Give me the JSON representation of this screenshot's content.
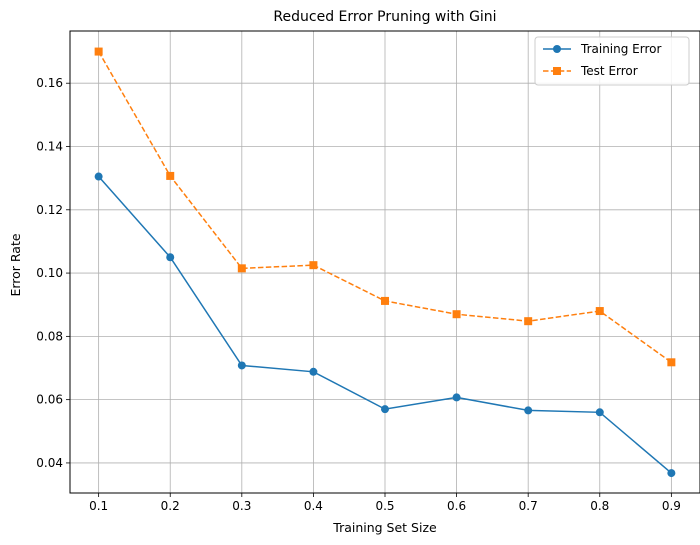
{
  "chart_data": {
    "type": "line",
    "title": "Reduced Error Pruning with Gini",
    "xlabel": "Training Set Size",
    "ylabel": "Error Rate",
    "x": [
      0.1,
      0.2,
      0.3,
      0.4,
      0.5,
      0.6,
      0.7,
      0.8,
      0.9
    ],
    "x_tick_labels": [
      "0.1",
      "0.2",
      "0.3",
      "0.4",
      "0.5",
      "0.6",
      "0.7",
      "0.8",
      "0.9"
    ],
    "y_ticks": [
      0.04,
      0.06,
      0.08,
      0.1,
      0.12,
      0.14,
      0.16
    ],
    "y_tick_labels": [
      "0.04",
      "0.06",
      "0.08",
      "0.10",
      "0.12",
      "0.14",
      "0.16"
    ],
    "xlim": [
      0.06,
      0.94
    ],
    "ylim": [
      0.0305,
      0.1765
    ],
    "grid": true,
    "legend": "top-right",
    "series": [
      {
        "name": "Training Error",
        "values": [
          0.1305,
          0.105,
          0.0708,
          0.0688,
          0.057,
          0.0607,
          0.0566,
          0.056,
          0.0368
        ],
        "color": "#1f77b4",
        "marker": "circle",
        "linestyle": "solid"
      },
      {
        "name": "Test Error",
        "values": [
          0.17,
          0.1307,
          0.1015,
          0.1025,
          0.0912,
          0.087,
          0.0848,
          0.088,
          0.0718
        ],
        "color": "#ff7f0e",
        "marker": "square",
        "linestyle": "dashed"
      }
    ]
  }
}
